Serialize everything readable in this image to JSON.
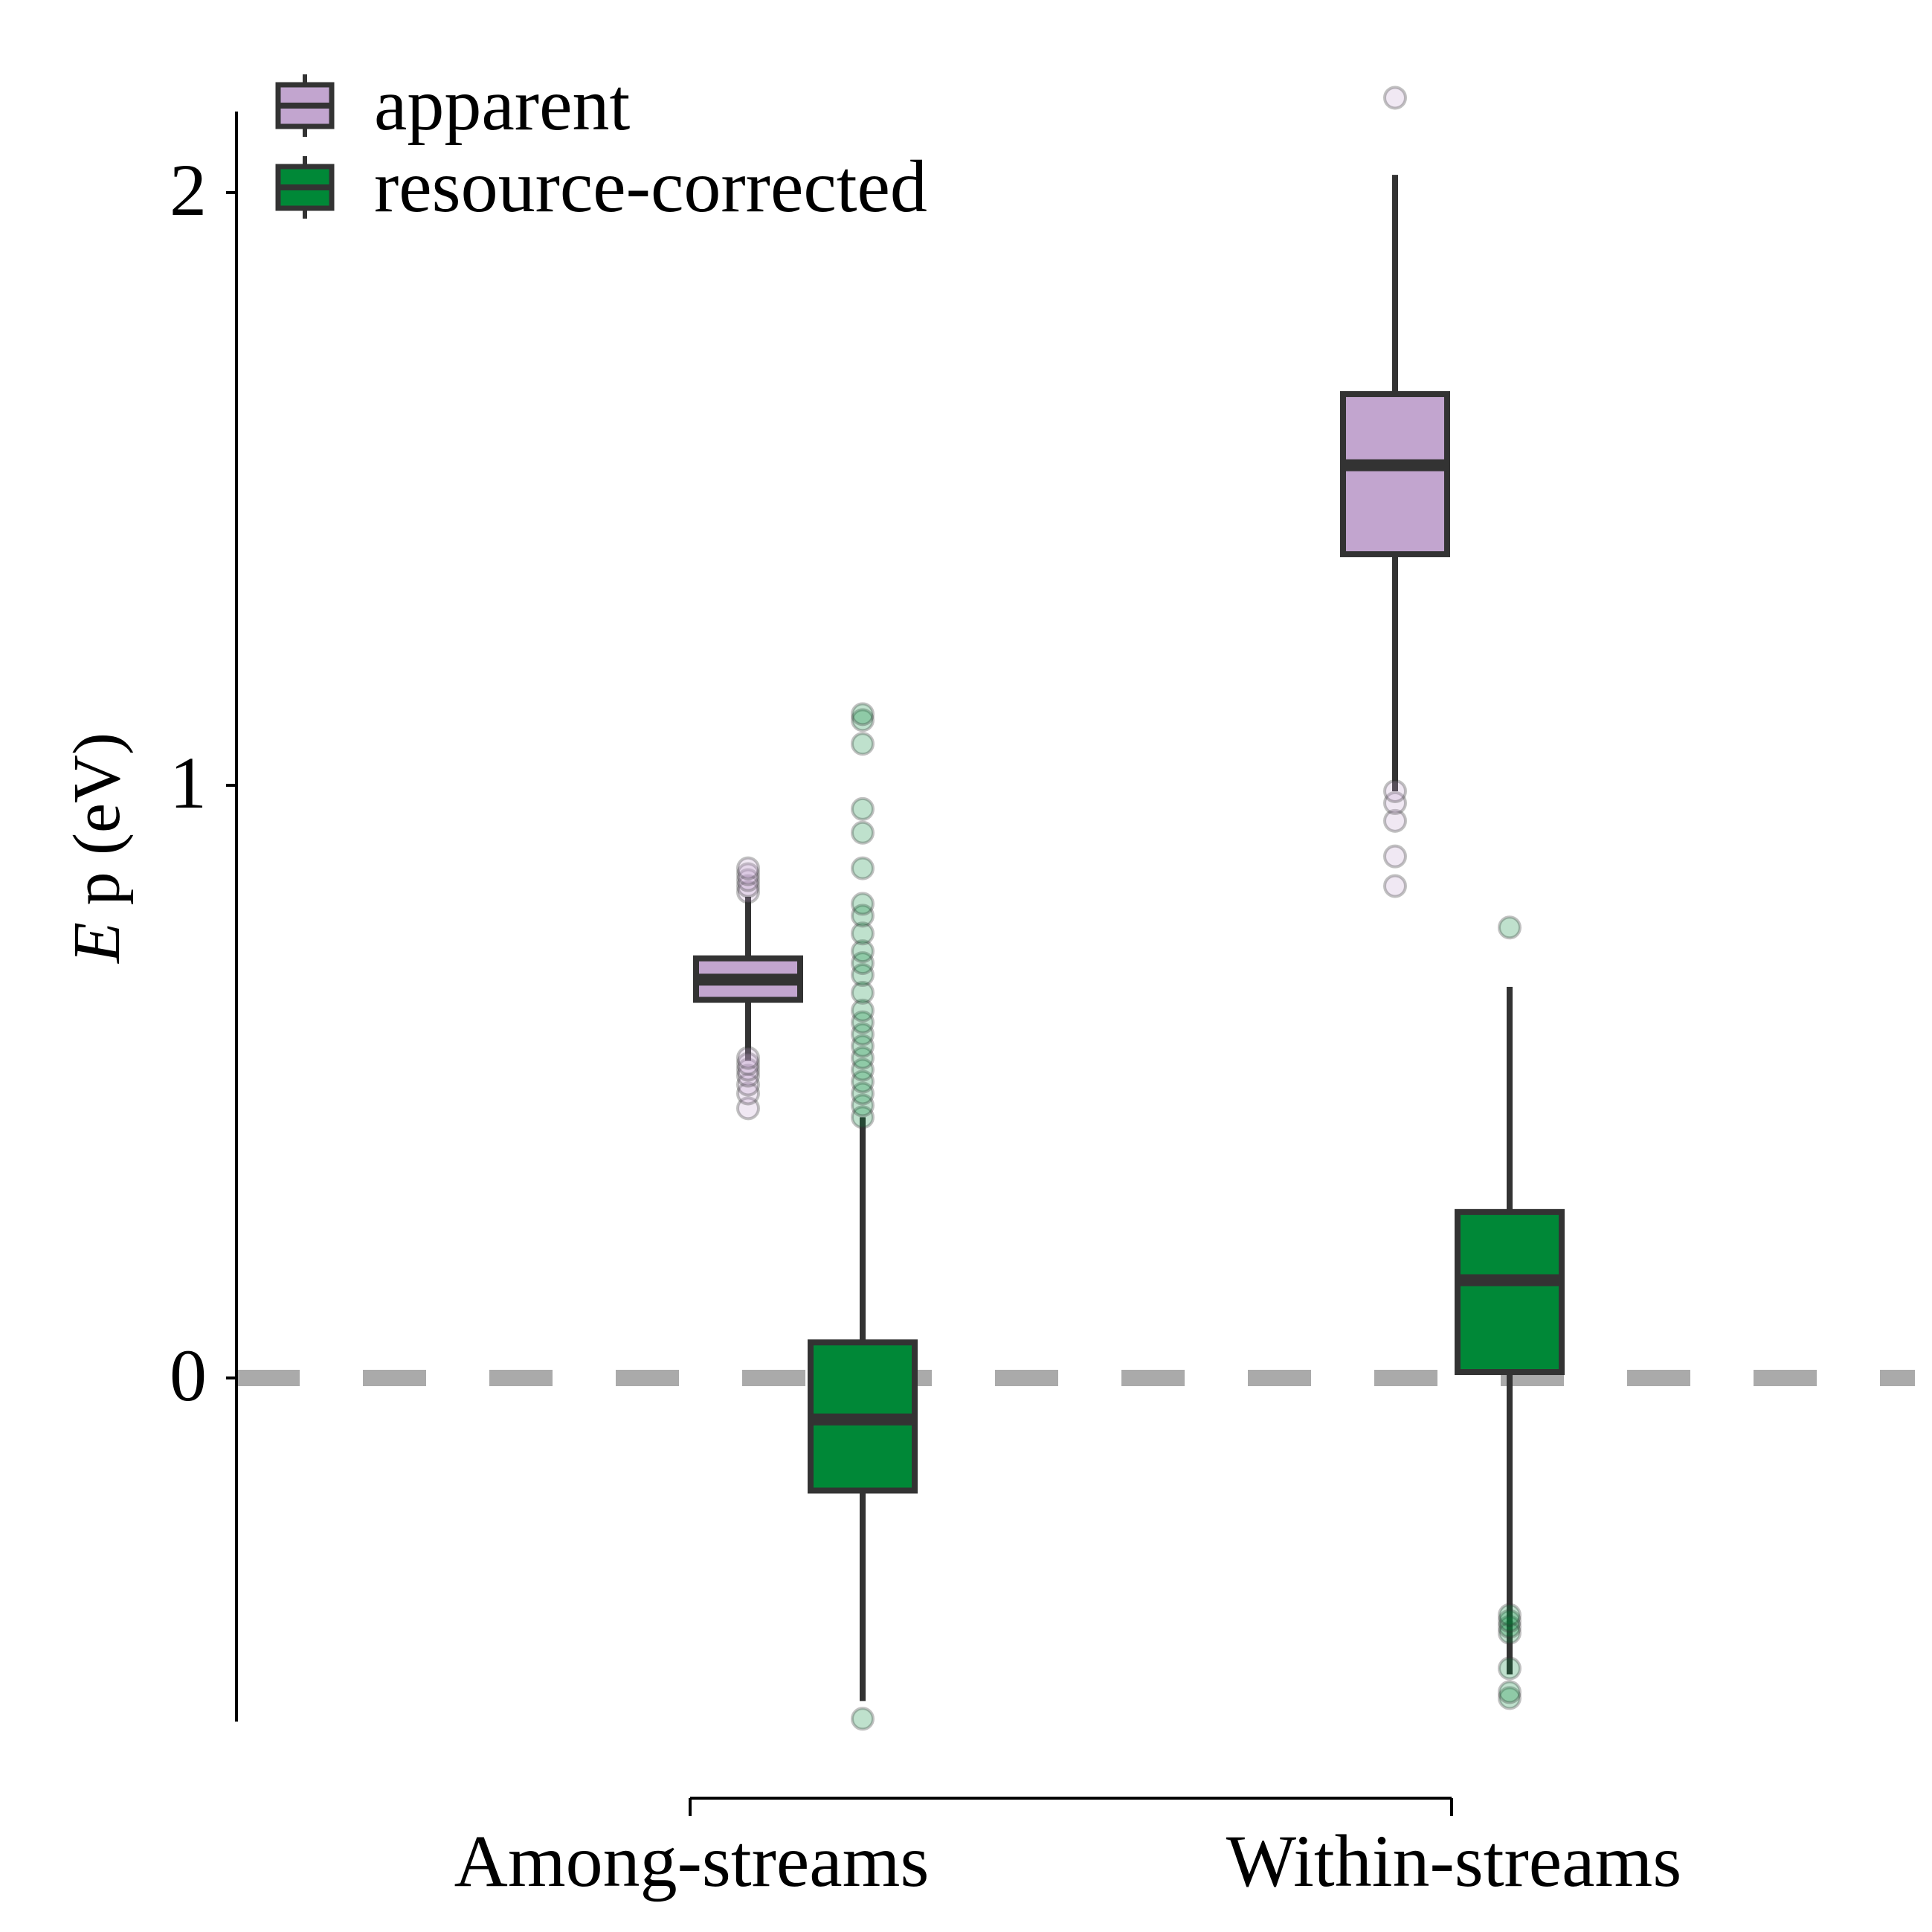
{
  "chart_data": {
    "type": "box",
    "ylabel_italic": "E",
    "ylabel_rest": " p (eV)",
    "categories": [
      "Among-streams",
      "Within-streams"
    ],
    "yticks": [
      0,
      1,
      2
    ],
    "ylim": [
      -0.58,
      2.13
    ],
    "reference_line": {
      "y": 0,
      "style": "dashed",
      "color": "#aaaaaa"
    },
    "legend_position": "top-left",
    "series": [
      {
        "name": "apparent",
        "color": "#c2a5cf",
        "boxes": [
          {
            "category": "Among-streams",
            "whisker_low": 0.535,
            "q1": 0.638,
            "median": 0.672,
            "q3": 0.708,
            "whisker_high": 0.812,
            "outliers": [
              0.455,
              0.48,
              0.495,
              0.51,
              0.52,
              0.53,
              0.54,
              0.82,
              0.83,
              0.84,
              0.85,
              0.86
            ]
          },
          {
            "category": "Within-streams",
            "whisker_low": 0.99,
            "q1": 1.39,
            "median": 1.54,
            "q3": 1.66,
            "whisker_high": 2.03,
            "outliers": [
              0.83,
              0.88,
              0.94,
              0.97,
              0.99,
              2.16
            ]
          }
        ]
      },
      {
        "name": "resource-corrected",
        "color": "#008837",
        "boxes": [
          {
            "category": "Among-streams",
            "whisker_low": -0.545,
            "q1": -0.19,
            "median": -0.07,
            "q3": 0.06,
            "whisker_high": 0.44,
            "outliers": [
              -0.575,
              0.44,
              0.46,
              0.48,
              0.5,
              0.52,
              0.54,
              0.56,
              0.58,
              0.6,
              0.62,
              0.65,
              0.68,
              0.7,
              0.72,
              0.75,
              0.78,
              0.8,
              0.86,
              0.92,
              0.96,
              1.07,
              1.11,
              1.12
            ]
          },
          {
            "category": "Within-streams",
            "whisker_low": -0.5,
            "q1": 0.01,
            "median": 0.165,
            "q3": 0.28,
            "whisker_high": 0.66,
            "outliers": [
              -0.54,
              -0.53,
              -0.49,
              -0.43,
              -0.42,
              -0.41,
              -0.4,
              0.76
            ]
          }
        ]
      }
    ]
  }
}
